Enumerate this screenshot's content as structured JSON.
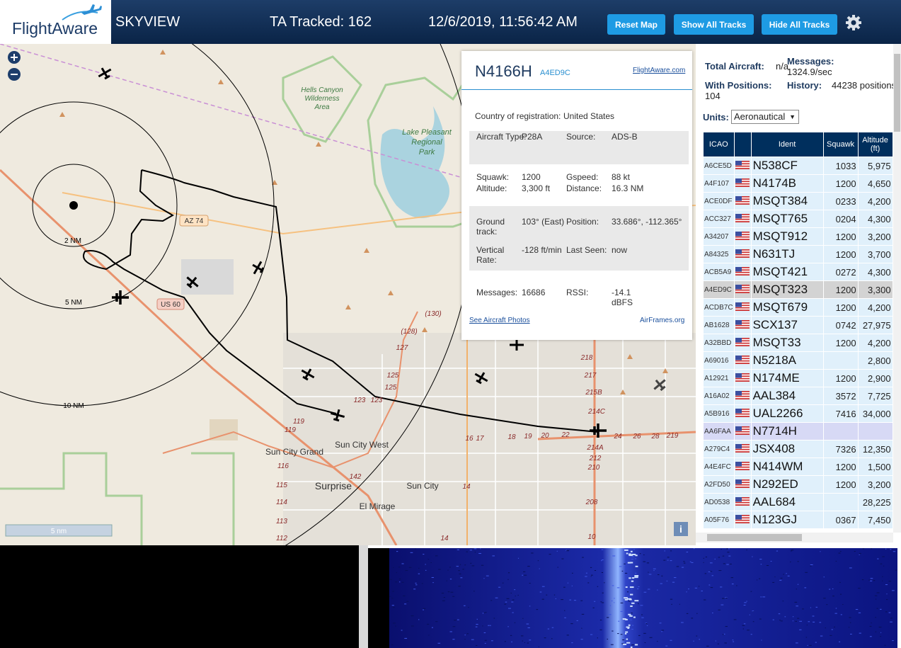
{
  "header": {
    "logo": "FlightAware",
    "app": "SKYVIEW",
    "tracked": "TA Tracked: 162",
    "datetime": "12/6/2019, 11:56:42 AM",
    "buttons": [
      "Reset Map",
      "Show All Tracks",
      "Hide All Tracks"
    ]
  },
  "map": {
    "rings": [
      "2 NM",
      "5 NM",
      "10 NM"
    ],
    "places": [
      "Hells Canyon",
      "Wilderness",
      "Area",
      "Lake Pleasant",
      "Regional",
      "Park",
      "Sun City Grand",
      "Sun City West",
      "Surprise",
      "Sun City",
      "El Mirage"
    ],
    "shields": [
      "AZ 74",
      "US 60"
    ],
    "road_labels": [
      "(130)",
      "(128)",
      "127",
      "125",
      "125",
      "123",
      "123",
      "119",
      "119",
      "116",
      "115",
      "114",
      "113",
      "112",
      "142",
      "16",
      "17",
      "18",
      "19",
      "20",
      "22",
      "24",
      "26",
      "28",
      "219",
      "218",
      "217",
      "215B",
      "214C",
      "214A",
      "212",
      "210",
      "208",
      "10",
      "14",
      "14"
    ],
    "scale": "5 nm",
    "info": "i"
  },
  "popup": {
    "ident": "N4166H",
    "hex": "A4ED9C",
    "link": "FlightAware.com",
    "country_label": "Country of registration:",
    "country": "United States",
    "rows": [
      [
        "Aircraft Type:",
        "P28A",
        "Source:",
        "ADS-B"
      ],
      [
        "Squawk:",
        "1200",
        "Gspeed:",
        "88 kt"
      ],
      [
        "Altitude:",
        "3,300 ft",
        "Distance:",
        "16.3 NM"
      ],
      [
        "Ground track:",
        "103° (East)",
        "Position:",
        "33.686°, -112.365°"
      ],
      [
        "Vertical Rate:",
        "-128 ft/min",
        "Last Seen:",
        "now"
      ],
      [
        "Messages:",
        "16686",
        "RSSI:",
        "-14.1 dBFS"
      ]
    ],
    "photos": "See Aircraft Photos",
    "airframes": "AirFrames.org"
  },
  "panel": {
    "total_label": "Total Aircraft:",
    "total": "n/a",
    "messages_label": "Messages:",
    "messages": "1324.9/sec",
    "positions_label": "With Positions:",
    "positions": "104",
    "history_label": "History:",
    "history": "44238 positions",
    "units_label": "Units:",
    "units": "Aeronautical",
    "table": {
      "columns": [
        "ICAO",
        "Ident",
        "Squawk",
        "Altitude (ft)"
      ],
      "rows": [
        {
          "icao": "A6CE5D",
          "ident": "N538CF",
          "squawk": "1033",
          "altitude": "5,975"
        },
        {
          "icao": "A4F107",
          "ident": "N4174B",
          "squawk": "1200",
          "altitude": "4,650"
        },
        {
          "icao": "ACE0DF",
          "ident": "MSQT384",
          "squawk": "0233",
          "altitude": "4,200"
        },
        {
          "icao": "ACC327",
          "ident": "MSQT765",
          "squawk": "0204",
          "altitude": "4,300"
        },
        {
          "icao": "A34207",
          "ident": "MSQT912",
          "squawk": "1200",
          "altitude": "3,200"
        },
        {
          "icao": "A84325",
          "ident": "N631TJ",
          "squawk": "1200",
          "altitude": "3,700"
        },
        {
          "icao": "ACB5A9",
          "ident": "MSQT421",
          "squawk": "0272",
          "altitude": "4,300"
        },
        {
          "icao": "A4ED9C",
          "ident": "MSQT323",
          "squawk": "1200",
          "altitude": "3,300",
          "selected": true
        },
        {
          "icao": "ACDB7C",
          "ident": "MSQT679",
          "squawk": "1200",
          "altitude": "4,200"
        },
        {
          "icao": "AB1628",
          "ident": "SCX137",
          "squawk": "0742",
          "altitude": "27,975"
        },
        {
          "icao": "A32BBD",
          "ident": "MSQT33",
          "squawk": "1200",
          "altitude": "4,200"
        },
        {
          "icao": "A69016",
          "ident": "N5218A",
          "altitude": "2,800"
        },
        {
          "icao": "A12921",
          "ident": "N174ME",
          "squawk": "1200",
          "altitude": "2,900"
        },
        {
          "icao": "A16A02",
          "ident": "AAL384",
          "squawk": "3572",
          "altitude": "7,725"
        },
        {
          "icao": "A5B916",
          "ident": "UAL2266",
          "squawk": "7416",
          "altitude": "34,000"
        },
        {
          "icao": "AA6FAA",
          "ident": "N7714H",
          "stale": true
        },
        {
          "icao": "A279C4",
          "ident": "JSX408",
          "squawk": "7326",
          "altitude": "12,350"
        },
        {
          "icao": "A4E4FC",
          "ident": "N414WM",
          "squawk": "1200",
          "altitude": "1,500"
        },
        {
          "icao": "A2FD50",
          "ident": "N292ED",
          "squawk": "1200",
          "altitude": "3,200"
        },
        {
          "icao": "AD0538",
          "ident": "AAL684",
          "altitude": "28,225"
        },
        {
          "icao": "A05F76",
          "ident": "N123GJ",
          "squawk": "0367",
          "altitude": "7,450"
        }
      ]
    }
  }
}
